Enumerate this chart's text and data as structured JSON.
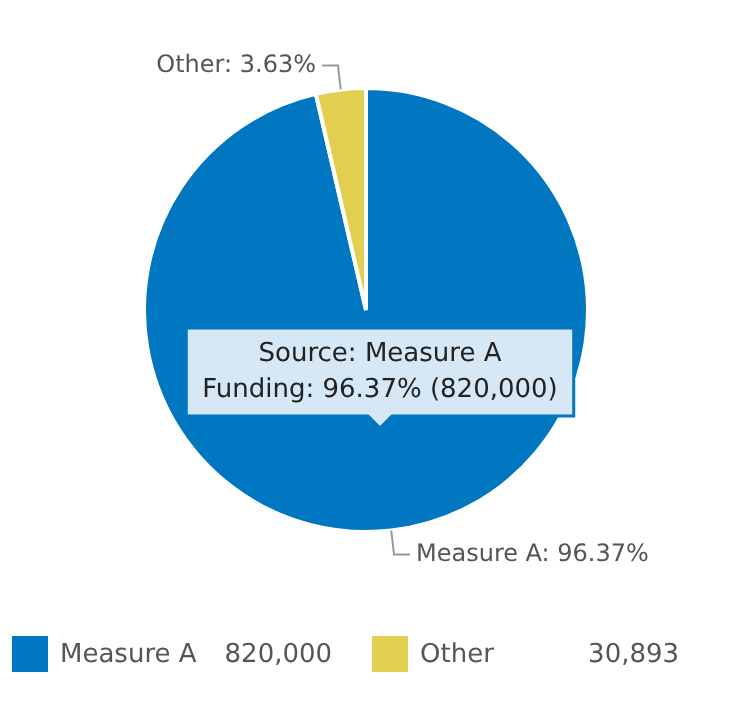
{
  "chart_data": {
    "type": "pie",
    "categories": [
      "Measure A",
      "Other"
    ],
    "values": [
      96.37,
      3.63
    ],
    "colors": [
      "#0077c0",
      "#e3cf4f"
    ],
    "value_labels": [
      "Measure A: 96.37%",
      "Other: 3.63%"
    ],
    "legend": "bottom",
    "annotations": [
      "Source: Measure A\nFunding: 96.37% (820,000)",
      "820,000",
      "30,893"
    ]
  }
}
